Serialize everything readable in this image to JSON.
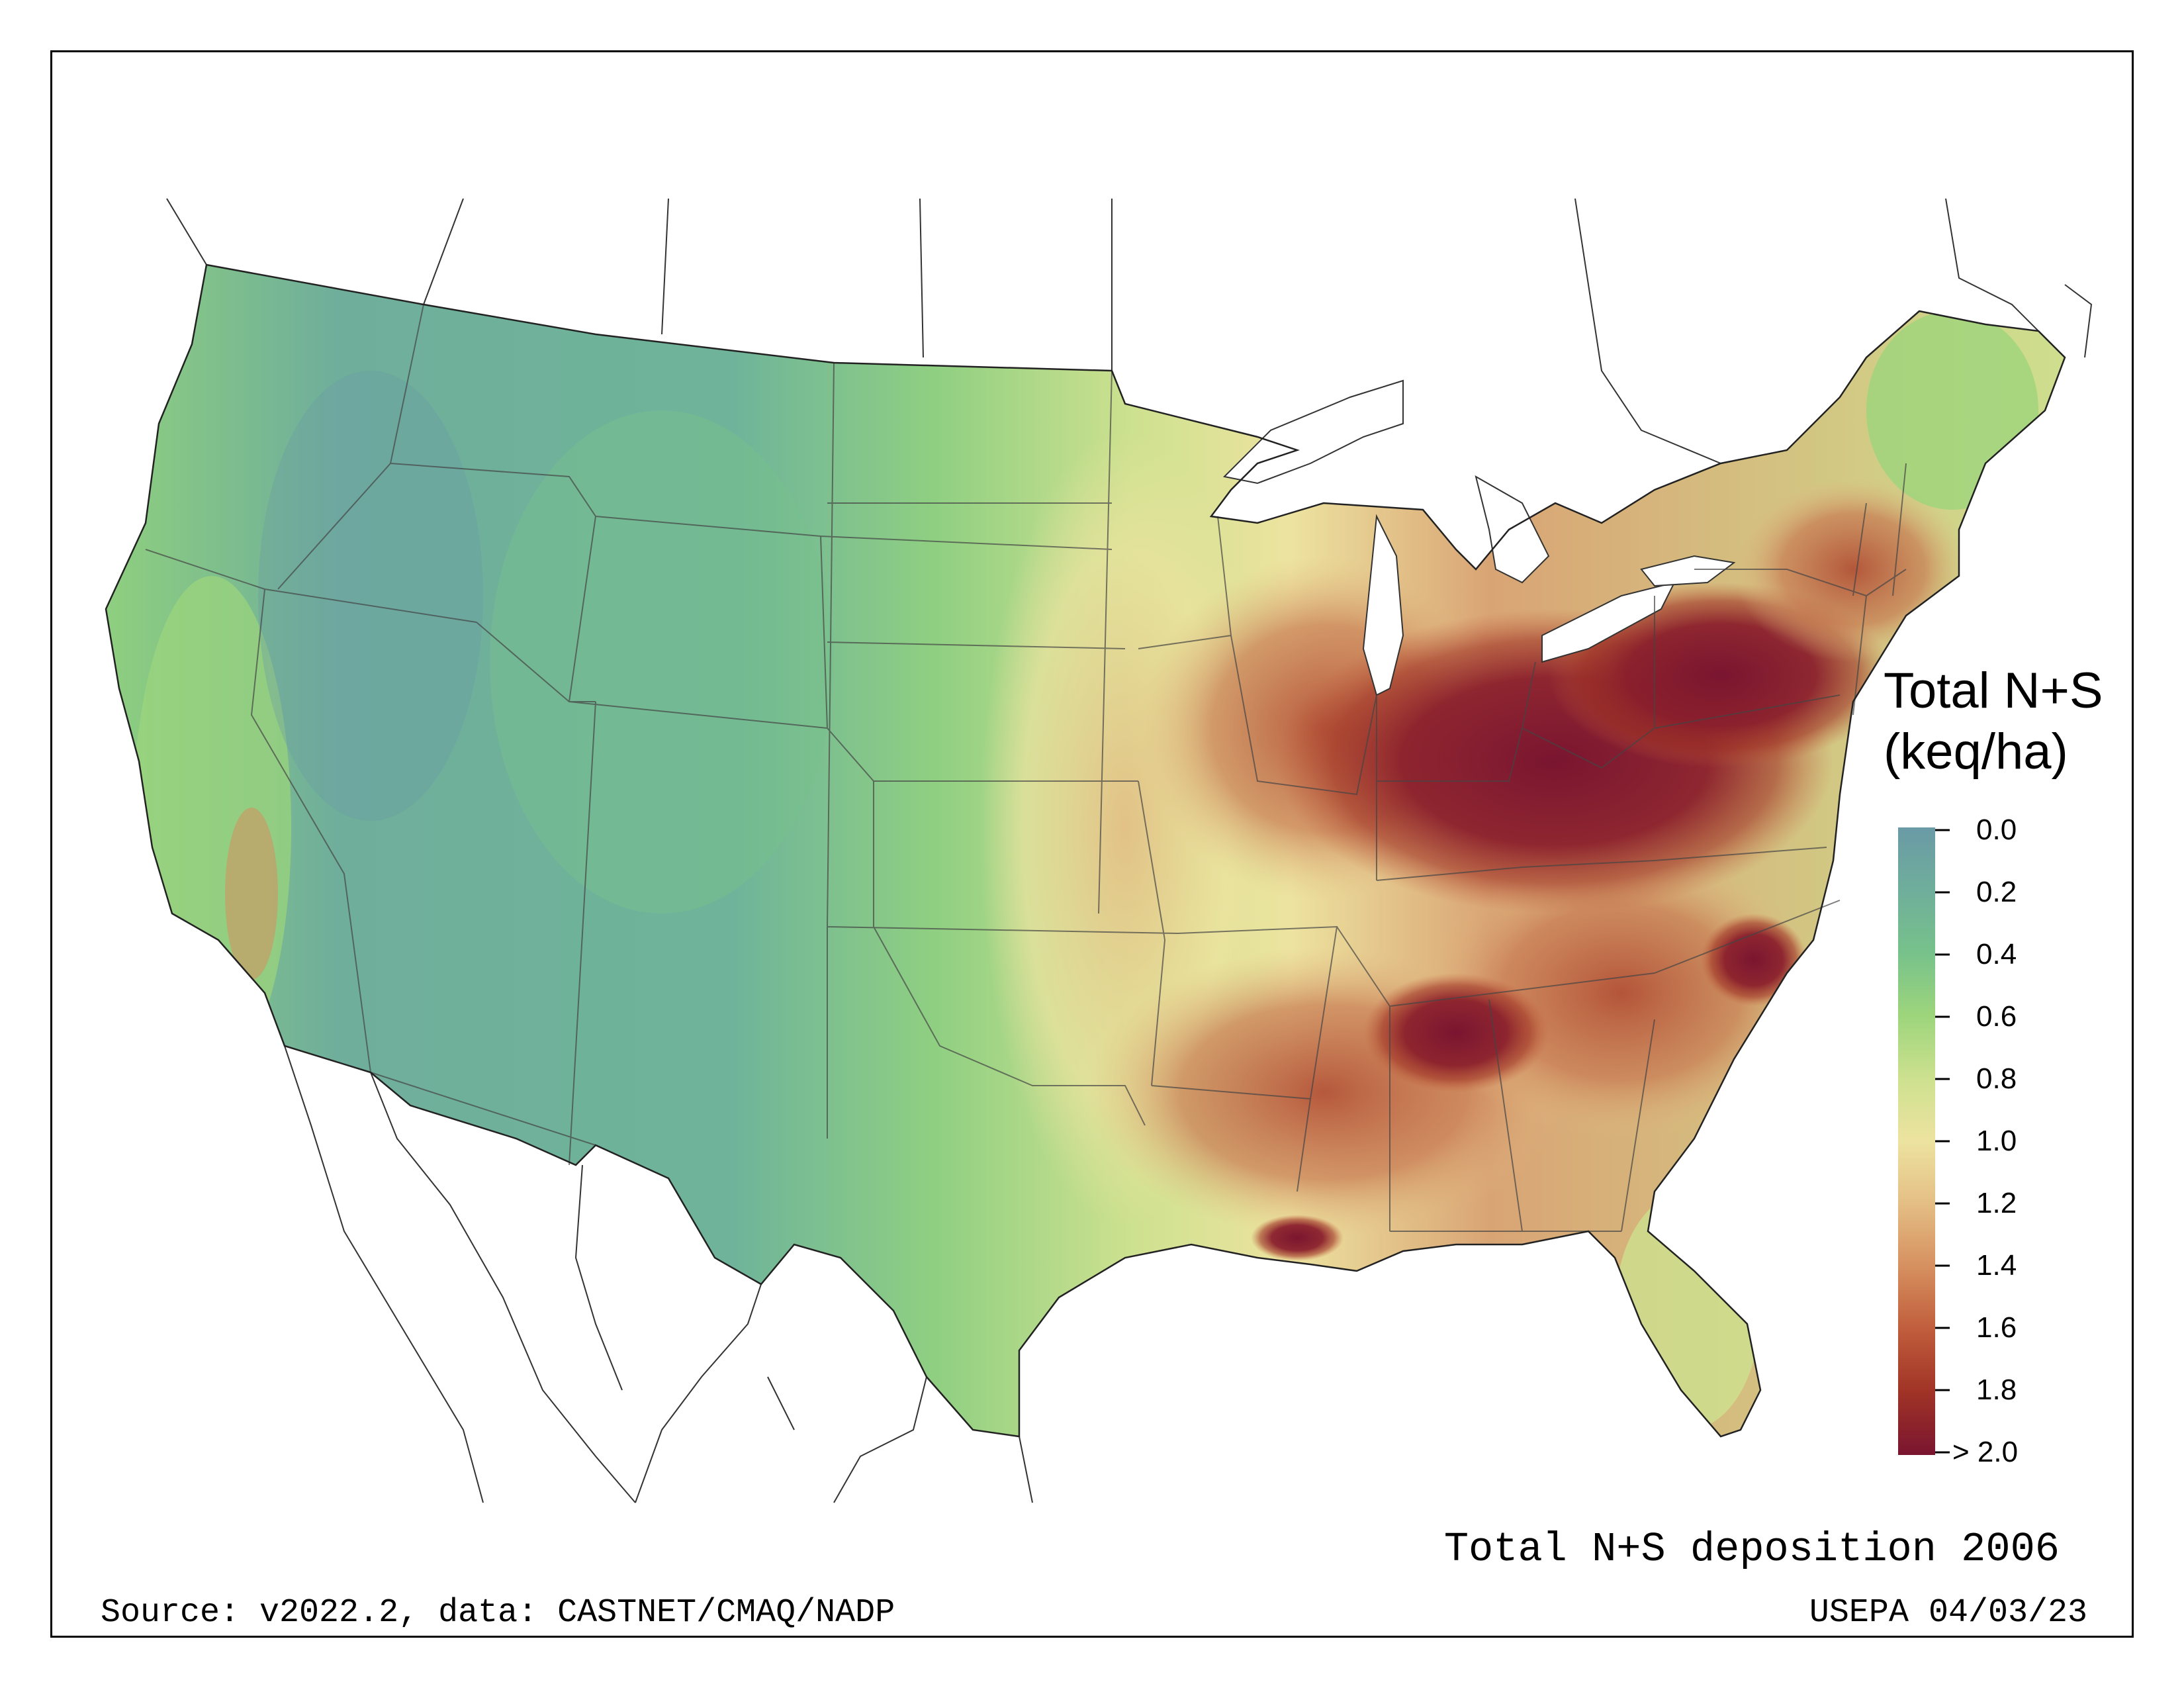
{
  "map": {
    "title": "Total N+S deposition 2006",
    "source": "Source: v2022.2, data: CASTNET/CMAQ/NADP",
    "credit": "USEPA 04/03/23"
  },
  "legend": {
    "title_line1": "Total N+S",
    "title_line2": "(keq/ha)",
    "ticks": [
      "0.0",
      "0.2",
      "0.4",
      "0.6",
      "0.8",
      "1.0",
      "1.2",
      "1.4",
      "1.6",
      "1.8",
      "> 2.0"
    ],
    "colors": [
      "#6a9aa6",
      "#6fae9b",
      "#77c28b",
      "#9dd57c",
      "#cde18f",
      "#ede3a0",
      "#e4be85",
      "#d6905f",
      "#c05d3c",
      "#a03326",
      "#7a1530"
    ]
  }
}
